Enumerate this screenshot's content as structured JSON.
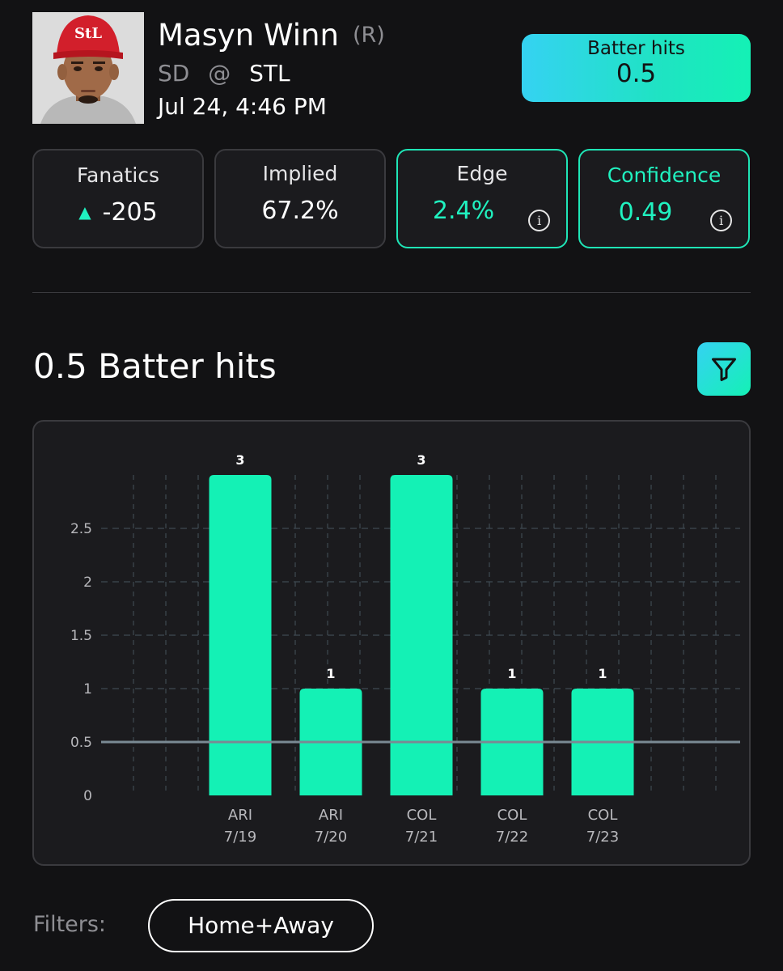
{
  "player": {
    "name": "Masyn Winn",
    "hand": "(R)",
    "away_team": "SD",
    "at": "@",
    "home_team": "STL",
    "game_time": "Jul 24, 4:46 PM",
    "avatar_icon": "player-headshot"
  },
  "prop": {
    "label": "Batter hits",
    "line": "0.5"
  },
  "stats": {
    "fanatics": {
      "label": "Fanatics",
      "value": "-205",
      "icon": "triangle-up-icon"
    },
    "implied": {
      "label": "Implied",
      "value": "67.2%"
    },
    "edge": {
      "label": "Edge",
      "value": "2.4%",
      "icon": "info-icon"
    },
    "confidence": {
      "label": "Confidence",
      "value": "0.49",
      "icon": "info-icon"
    }
  },
  "section": {
    "title": "0.5 Batter hits",
    "filter_icon": "filter-icon"
  },
  "filters": {
    "label": "Filters:",
    "pill": "Home+Away"
  },
  "colors": {
    "accent": "#14F1B5",
    "accent_cyan": "#35D2F2",
    "background": "#121214",
    "card": "#1B1B1E"
  },
  "chart_data": {
    "type": "bar",
    "categories": [
      "ARI 7/19",
      "ARI 7/20",
      "COL 7/21",
      "COL 7/22",
      "COL 7/23"
    ],
    "opponents": [
      "ARI",
      "ARI",
      "COL",
      "COL",
      "COL"
    ],
    "dates": [
      "7/19",
      "7/20",
      "7/21",
      "7/22",
      "7/23"
    ],
    "values": [
      3,
      1,
      3,
      1,
      1
    ],
    "data_labels": [
      "3",
      "1",
      "3",
      "1",
      "1"
    ],
    "y_ticks": [
      "0",
      "0.5",
      "1",
      "1.5",
      "2",
      "2.5"
    ],
    "y_tick_values": [
      0,
      0.5,
      1,
      1.5,
      2,
      2.5
    ],
    "ylim": [
      0,
      3
    ],
    "reference_line": 0.5,
    "grid": true,
    "bar_color": "#14F1B5"
  }
}
